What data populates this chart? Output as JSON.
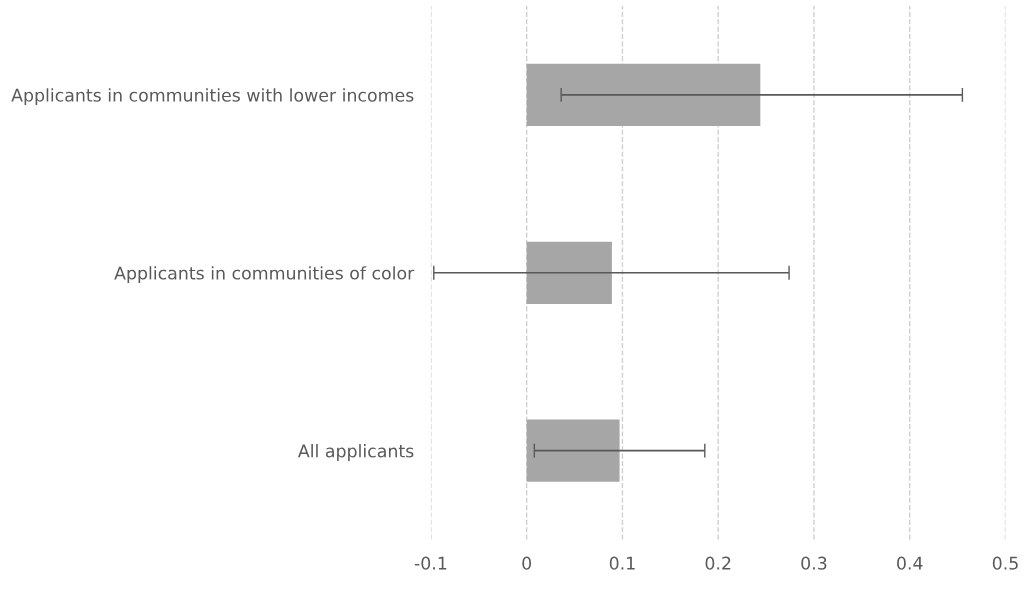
{
  "chart_data": {
    "type": "bar",
    "orientation": "horizontal",
    "categories": [
      "Applicants in communities with lower incomes",
      "Applicants in communities of color",
      "All applicants"
    ],
    "values": [
      0.244,
      0.089,
      0.097
    ],
    "errors": [
      [
        0.036,
        0.455
      ],
      [
        -0.097,
        0.274
      ],
      [
        0.008,
        0.186
      ]
    ],
    "color": "#a6a6a6",
    "xlim": [
      -0.1,
      0.5
    ],
    "xticks": [
      -0.1,
      0,
      0.1,
      0.2,
      0.3,
      0.4,
      0.5
    ],
    "grid": "x"
  }
}
